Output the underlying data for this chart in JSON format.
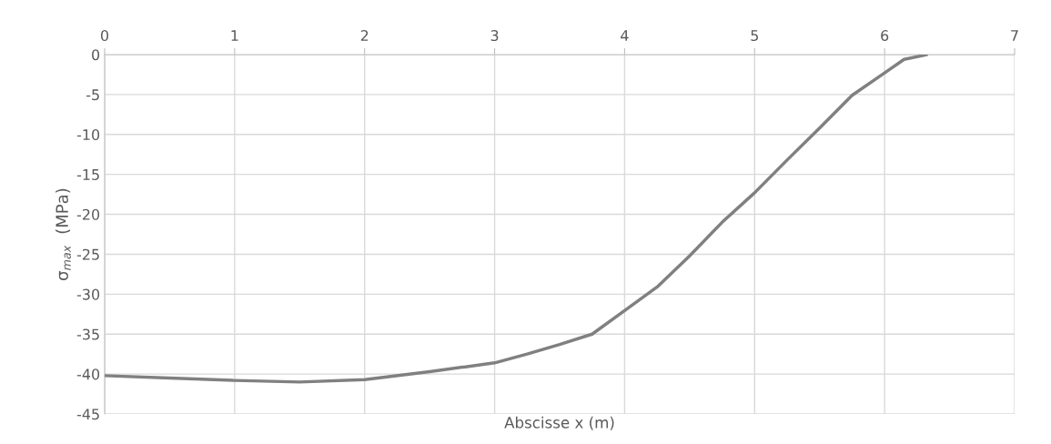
{
  "chart_data": {
    "type": "line",
    "xlabel": "Abscisse x (m)",
    "ylabel": "σ$_{max}$  (MPa)",
    "x": [
      0,
      0.5,
      1,
      1.5,
      2,
      2.5,
      3,
      3.25,
      3.5,
      3.75,
      4,
      4.25,
      4.5,
      4.75,
      5,
      5.25,
      5.5,
      5.75,
      6,
      6.15,
      6.3,
      6.32
    ],
    "series": [
      {
        "color": "#808080",
        "values": [
          -40.2,
          -40.5,
          -40.8,
          -41.0,
          -40.7,
          -39.7,
          -38.6,
          -37.5,
          -36.3,
          -35.0,
          -32.05,
          -29.1,
          -25.2,
          -21.0,
          -17.3,
          -13.2,
          -9.2,
          -5.1,
          -2.3,
          -0.6,
          -0.1,
          0
        ]
      }
    ],
    "xlim": [
      0,
      7
    ],
    "xticks": [
      0,
      1,
      2,
      3,
      4,
      5,
      6,
      7
    ],
    "ylim": [
      -45,
      0
    ],
    "yticks": [
      {
        "value": -45,
        "label": "-45"
      },
      {
        "value": -40,
        "label": "-40"
      },
      {
        "value": -35,
        "label": "-35"
      },
      {
        "value": -30,
        "label": "-30"
      },
      {
        "value": -25,
        "label": "-25"
      },
      {
        "value": -20,
        "label": "-20"
      },
      {
        "value": -15,
        "label": "-15"
      },
      {
        "value": -10,
        "label": "-10"
      },
      {
        "value": -5,
        "label": "-5"
      },
      0
    ],
    "grid": true,
    "marker": "none",
    "line_style": "solid"
  }
}
